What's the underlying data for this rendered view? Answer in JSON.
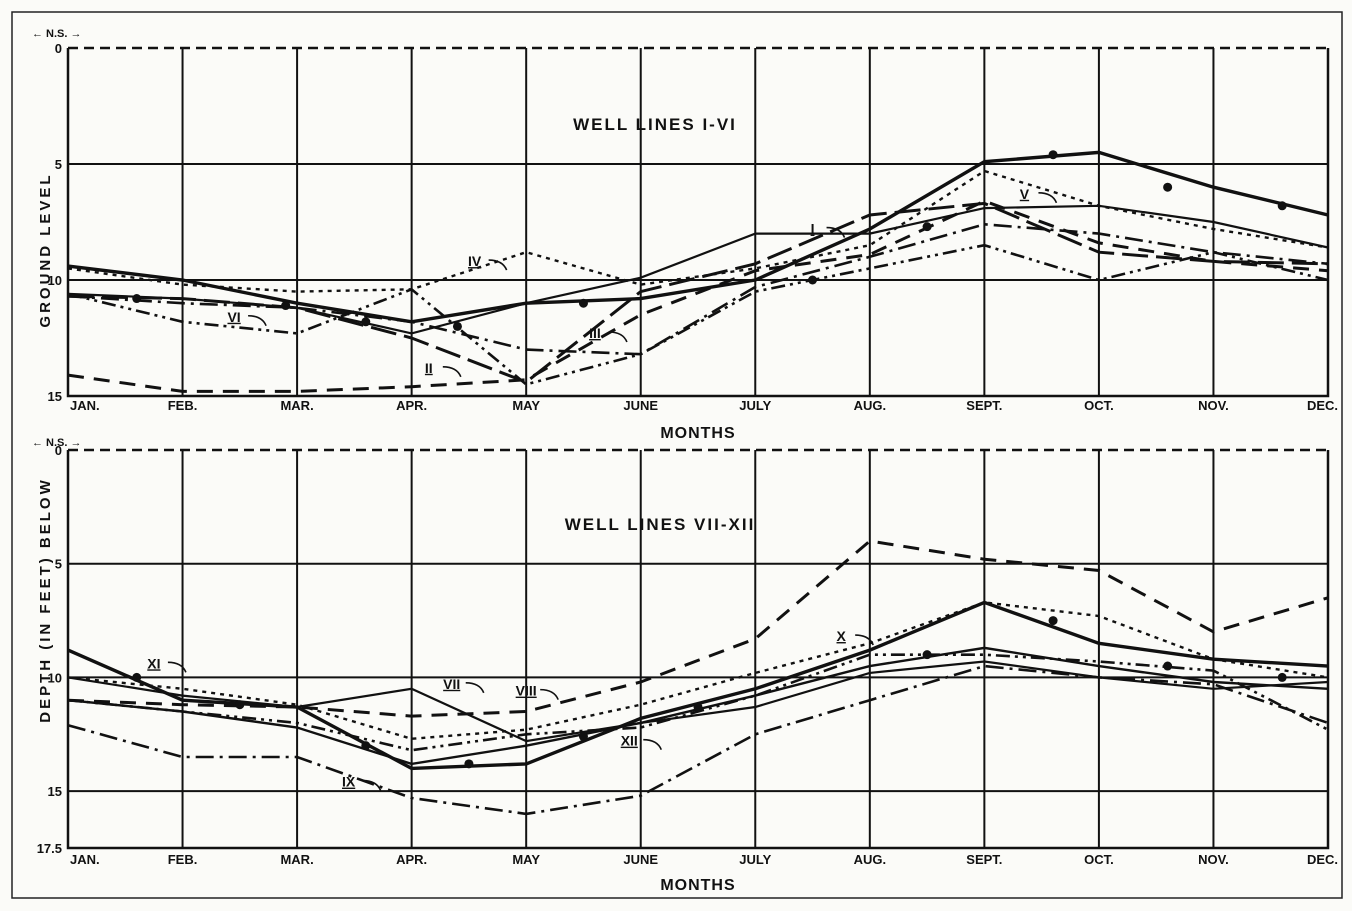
{
  "figure": {
    "ylabel": "DEPTH (IN FEET) BELOW GROUND LEVEL",
    "ylabel_lower_part": "DEPTH (IN FEET) BELOW",
    "ylabel_upper_part": "GROUND LEVEL"
  },
  "chart_data": [
    {
      "type": "line",
      "title": "WELL LINES I-VI",
      "xlabel": "MONTHS",
      "scale_note": "← N.S. →",
      "categories": [
        "JAN.",
        "FEB.",
        "MAR.",
        "APR.",
        "MAY",
        "JUNE",
        "JULY",
        "AUG.",
        "SEPT.",
        "OCT.",
        "NOV.",
        "DEC."
      ],
      "ylim": [
        0,
        15
      ],
      "yticks": [
        "0",
        "5",
        "10",
        "15"
      ],
      "y_axis": "depth below ground level, increasing downward",
      "grid": true,
      "series": [
        {
          "name": "I",
          "label_at": [
            6.5,
            8.0
          ],
          "values": [
            10.6,
            10.8,
            11.2,
            12.3,
            11.0,
            9.9,
            8.0,
            8.0,
            6.9,
            6.8,
            7.5,
            8.6
          ],
          "style": "solid-thin"
        },
        {
          "name": "II",
          "label_at": [
            3.15,
            14.0
          ],
          "values": [
            14.1,
            14.8,
            14.8,
            14.6,
            14.3,
            11.5,
            9.6,
            8.9,
            6.6,
            8.4,
            9.2,
            9.6
          ],
          "style": "dashed"
        },
        {
          "name": "III",
          "label_at": [
            4.6,
            12.5
          ],
          "values": [
            10.7,
            11.0,
            11.2,
            11.8,
            13.0,
            13.2,
            10.3,
            9.0,
            7.6,
            8.0,
            8.8,
            9.3
          ],
          "style": "dash-dot"
        },
        {
          "name": "IV",
          "label_at": [
            3.55,
            9.4
          ],
          "values": [
            9.5,
            10.2,
            10.5,
            10.4,
            8.8,
            10.2,
            9.5,
            8.5,
            5.3,
            6.8,
            7.8,
            8.6
          ],
          "style": "dotted"
        },
        {
          "name": "V",
          "label_at": [
            8.35,
            6.5
          ],
          "values": [
            10.7,
            10.8,
            11.2,
            12.5,
            14.4,
            10.5,
            9.3,
            7.2,
            6.7,
            8.8,
            9.2,
            9.3
          ],
          "style": "long-dash"
        },
        {
          "name": "VI",
          "label_at": [
            1.45,
            11.8
          ],
          "values": [
            10.6,
            11.8,
            12.3,
            10.4,
            14.5,
            13.2,
            10.5,
            9.5,
            8.5,
            10.0,
            8.8,
            10.0
          ],
          "style": "dash-dot-dot"
        },
        {
          "name": "",
          "values": [
            9.4,
            10.0,
            11.0,
            11.8,
            11.0,
            10.8,
            10.0,
            7.8,
            4.9,
            4.5,
            6.0,
            7.2
          ],
          "extra": [
            [
              0.6,
              10.8
            ],
            [
              1.9,
              11.1
            ],
            [
              2.6,
              11.8
            ],
            [
              3.4,
              12.0
            ],
            [
              4.5,
              11.0
            ],
            [
              6.5,
              10.0
            ],
            [
              7.5,
              7.7
            ],
            [
              8.6,
              4.6
            ],
            [
              9.6,
              6.0
            ],
            [
              10.6,
              6.8
            ]
          ],
          "style": "bold-dotted"
        }
      ]
    },
    {
      "type": "line",
      "title": "WELL LINES VII-XII",
      "xlabel": "MONTHS",
      "scale_note": "← N.S. →",
      "categories": [
        "JAN.",
        "FEB.",
        "MAR.",
        "APR.",
        "MAY",
        "JUNE",
        "JULY",
        "AUG.",
        "SEPT.",
        "OCT.",
        "NOV.",
        "DEC."
      ],
      "ylim": [
        0,
        17.5
      ],
      "yticks": [
        "0",
        "5",
        "10",
        "15",
        "17.5"
      ],
      "y_axis": "depth below ground level, increasing downward",
      "grid": true,
      "series": [
        {
          "name": "VII",
          "label_at": [
            3.35,
            10.5
          ],
          "values": [
            10.0,
            10.8,
            11.3,
            10.5,
            12.8,
            12.0,
            11.3,
            9.8,
            9.3,
            10.0,
            10.5,
            10.2
          ],
          "style": "solid-thin"
        },
        {
          "name": "VIII",
          "label_at": [
            4.0,
            10.8
          ],
          "values": [
            11.0,
            11.2,
            11.3,
            11.7,
            11.5,
            10.2,
            8.3,
            4.0,
            4.8,
            5.3,
            8.0,
            6.5
          ],
          "style": "dashed"
        },
        {
          "name": "IX",
          "label_at": [
            2.45,
            14.8
          ],
          "values": [
            12.1,
            13.5,
            13.5,
            15.3,
            16.0,
            15.2,
            12.5,
            11.0,
            9.5,
            10.0,
            10.3,
            12.0
          ],
          "style": "dash-dot"
        },
        {
          "name": "X",
          "label_at": [
            6.75,
            8.4
          ],
          "values": [
            10.0,
            10.5,
            11.2,
            12.7,
            12.3,
            11.2,
            9.8,
            8.5,
            6.7,
            7.3,
            9.2,
            10.0
          ],
          "style": "dotted"
        },
        {
          "name": "XI",
          "label_at": [
            0.75,
            9.6
          ],
          "values": [
            11.0,
            11.5,
            12.2,
            13.8,
            13.0,
            12.0,
            10.8,
            9.5,
            8.7,
            9.5,
            10.2,
            10.5
          ],
          "style": "solid"
        },
        {
          "name": "XII",
          "label_at": [
            4.9,
            13.0
          ],
          "values": [
            11.0,
            11.5,
            12.0,
            13.2,
            12.5,
            12.2,
            10.8,
            9.0,
            9.0,
            9.3,
            9.7,
            12.3
          ],
          "style": "dash-dot-dot"
        },
        {
          "name": "",
          "values": [
            8.8,
            11.0,
            11.3,
            14.0,
            13.8,
            11.8,
            10.5,
            8.8,
            6.7,
            8.5,
            9.2,
            9.5
          ],
          "extra": [
            [
              0.6,
              10.0
            ],
            [
              1.5,
              11.2
            ],
            [
              2.6,
              13.0
            ],
            [
              3.5,
              13.8
            ],
            [
              4.5,
              12.6
            ],
            [
              5.5,
              11.3
            ],
            [
              7.5,
              9.0
            ],
            [
              8.6,
              7.5
            ],
            [
              9.6,
              9.5
            ],
            [
              10.6,
              10.0
            ]
          ],
          "style": "bold-dotted"
        }
      ]
    }
  ]
}
